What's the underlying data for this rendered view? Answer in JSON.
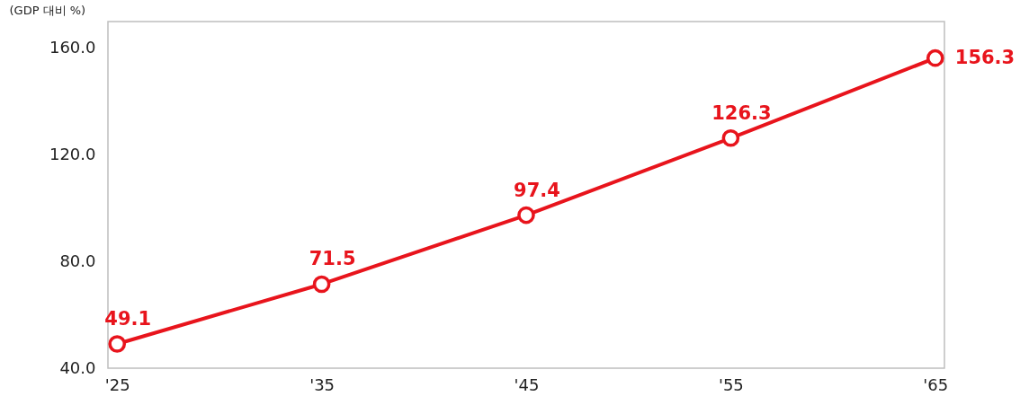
{
  "chart_data": {
    "type": "line",
    "ylabel": "(GDP 대비 %)",
    "categories": [
      "'25",
      "'35",
      "'45",
      "'55",
      "'65"
    ],
    "series": [
      {
        "color": "#e8141c",
        "values": [
          49.1,
          71.5,
          97.4,
          126.3,
          156.3
        ]
      }
    ],
    "ylim": [
      40,
      170
    ],
    "yticks": [
      {
        "value": 40,
        "label": "40.0"
      },
      {
        "value": 80,
        "label": "80.0"
      },
      {
        "value": 120,
        "label": "120.0"
      },
      {
        "value": 160,
        "label": "160.0"
      }
    ],
    "data_labels": true,
    "marker": "circle",
    "line_style": "solid",
    "grid": false
  }
}
